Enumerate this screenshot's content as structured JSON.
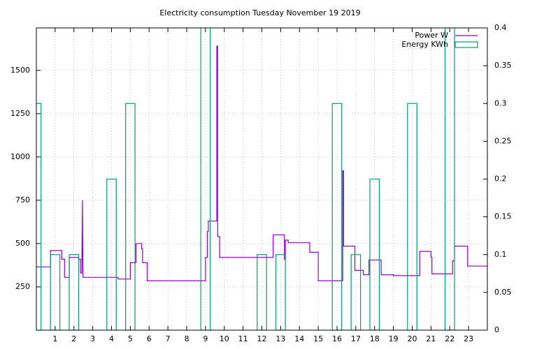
{
  "chart_data": {
    "type": "line",
    "title": "Electricity consumption Tuesday November 19 2019",
    "xlim": [
      0,
      24
    ],
    "xticks": [
      1,
      2,
      3,
      4,
      5,
      6,
      7,
      8,
      9,
      10,
      11,
      12,
      13,
      14,
      15,
      16,
      17,
      18,
      19,
      20,
      21,
      22,
      23
    ],
    "ylim": [
      0,
      1745
    ],
    "yticks": [
      250,
      500,
      750,
      1000,
      1250,
      1500
    ],
    "y2lim": [
      0,
      0.4
    ],
    "y2ticks": [
      0,
      0.05,
      0.1,
      0.15,
      0.2,
      0.25,
      0.3,
      0.35,
      0.4
    ],
    "grid": true,
    "legend": "top-right",
    "series": [
      {
        "name": "Power W",
        "color": "#9400d3",
        "style": "steps",
        "x": [
          0,
          0.75,
          0.75,
          1.35,
          1.35,
          1.5,
          1.5,
          1.75,
          1.75,
          2.25,
          2.25,
          2.35,
          2.35,
          2.42,
          2.45,
          2.48,
          2.5,
          4.35,
          4.35,
          5.0,
          5.0,
          5.3,
          5.3,
          5.6,
          5.6,
          5.65,
          5.65,
          5.9,
          5.9,
          9.0,
          9.0,
          9.1,
          9.1,
          9.15,
          9.15,
          9.6,
          9.6,
          9.65,
          9.65,
          9.75,
          9.75,
          12.6,
          12.6,
          13.2,
          13.2,
          13.25,
          13.25,
          13.4,
          13.4,
          14.55,
          14.55,
          15.0,
          15.0,
          16.3,
          16.3,
          16.35,
          16.35,
          16.95,
          16.95,
          17.4,
          17.4,
          17.7,
          17.7,
          18.35,
          18.35,
          19.0,
          19.0,
          20.4,
          20.4,
          21.0,
          21.0,
          21.05,
          21.05,
          22.15,
          22.15,
          22.25,
          22.25,
          22.95,
          22.95,
          24
        ],
        "values": [
          365,
          365,
          460,
          460,
          410,
          410,
          305,
          305,
          420,
          420,
          410,
          410,
          330,
          330,
          750,
          305,
          305,
          305,
          295,
          295,
          390,
          390,
          500,
          500,
          470,
          470,
          390,
          390,
          285,
          285,
          420,
          420,
          570,
          570,
          630,
          630,
          1640,
          1640,
          540,
          540,
          420,
          420,
          550,
          550,
          410,
          410,
          520,
          520,
          505,
          505,
          450,
          450,
          285,
          285,
          920,
          920,
          485,
          485,
          345,
          345,
          320,
          320,
          405,
          405,
          320,
          320,
          315,
          315,
          455,
          455,
          420,
          420,
          325,
          325,
          400,
          400,
          485,
          485,
          370,
          370
        ]
      },
      {
        "name": "Energy KWh",
        "color": "#009e73",
        "style": "boxes",
        "axis": "y2",
        "x": [
          0,
          1,
          2,
          3,
          4,
          5,
          6,
          7,
          8,
          9,
          10,
          11,
          12,
          13,
          14,
          15,
          16,
          17,
          18,
          19,
          20,
          21,
          22,
          23
        ],
        "values": [
          0.3,
          0.1,
          0.1,
          0,
          0.2,
          0.3,
          0,
          0,
          0,
          0.5,
          0,
          0,
          0.1,
          0.1,
          0,
          0,
          0.3,
          0.1,
          0.2,
          0,
          0.3,
          0,
          0.5,
          0
        ]
      }
    ]
  }
}
